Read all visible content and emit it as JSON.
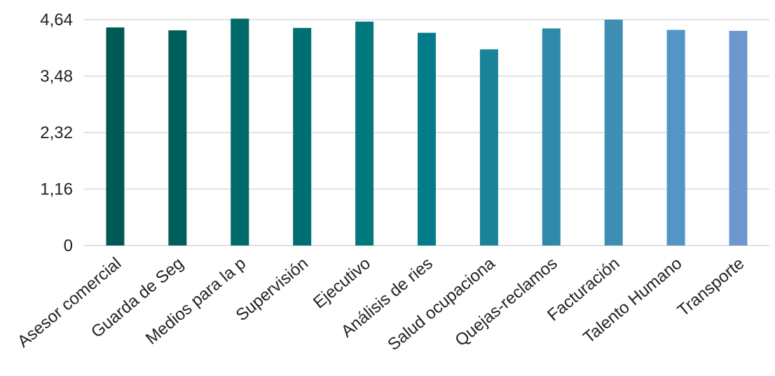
{
  "chart_data": {
    "type": "bar",
    "title": "",
    "xlabel": "",
    "ylabel": "",
    "ylim": [
      0,
      4.64
    ],
    "yticks": [
      "0",
      "1,16",
      "2,32",
      "3,48",
      "4,64"
    ],
    "ytick_values": [
      0,
      1.16,
      2.32,
      3.48,
      4.64
    ],
    "grid": true,
    "legend": "none",
    "categories": [
      "Asesor comercial",
      "Guarda de Seg",
      "Medios para la p",
      "Supervisión",
      "Ejecutivo",
      "Análisis de ries",
      "Salud ocupaciona",
      "Quejas-reclamos",
      "Facturación",
      "Talento Humano",
      "Transporte"
    ],
    "values": [
      4.48,
      4.42,
      4.66,
      4.47,
      4.6,
      4.37,
      4.03,
      4.46,
      4.64,
      4.43,
      4.41
    ],
    "colors": [
      "#005a54",
      "#005f5b",
      "#006a6a",
      "#006f73",
      "#00787e",
      "#037c89",
      "#1a8299",
      "#2e8aa8",
      "#3f8fb5",
      "#5395c6",
      "#6c97cf"
    ]
  }
}
